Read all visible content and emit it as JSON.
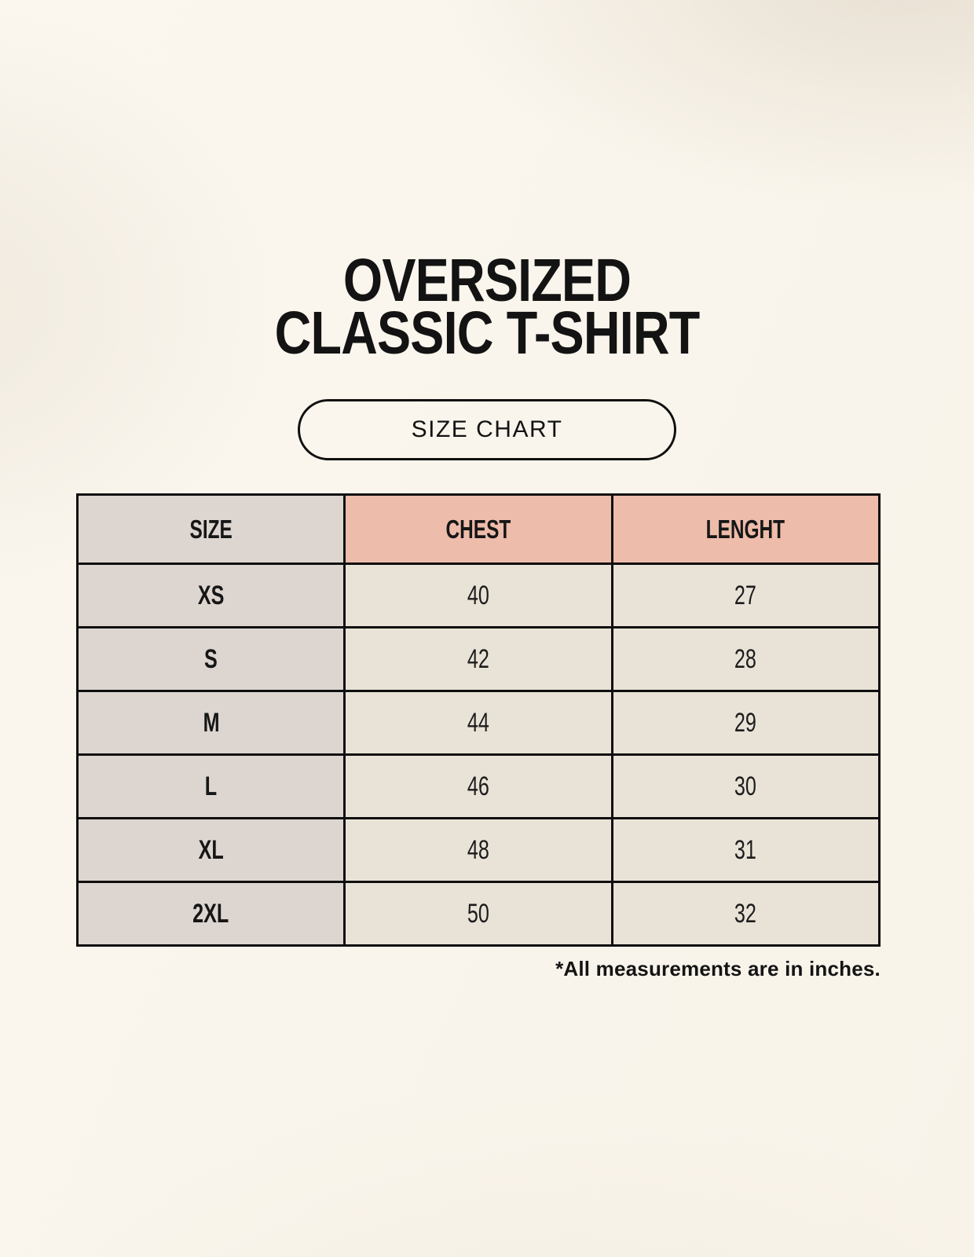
{
  "title": {
    "line1": "OVERSIZED",
    "line2": "CLASSIC T-SHIRT"
  },
  "size_chart_button": {
    "label": "SIZE CHART"
  },
  "table": {
    "headers": [
      "SIZE",
      "CHEST",
      "LENGHT"
    ],
    "rows": [
      [
        "XS",
        "40",
        "27"
      ],
      [
        "S",
        "42",
        "28"
      ],
      [
        "M",
        "44",
        "29"
      ],
      [
        "L",
        "46",
        "30"
      ],
      [
        "XL",
        "48",
        "31"
      ],
      [
        "2XL",
        "50",
        "32"
      ]
    ]
  },
  "footnote": "*All measurements are in inches.",
  "colors": {
    "background": "#faf6ee",
    "size_column_bg": "#ddd6d0",
    "measure_header_bg": "#eebcaa",
    "data_cell_bg": "#e9e2d7",
    "border": "#0f0f0f",
    "text": "#161616"
  },
  "chart_data": {
    "type": "table",
    "title": "OVERSIZED CLASSIC T-SHIRT",
    "subtitle": "SIZE CHART",
    "columns": [
      "SIZE",
      "CHEST",
      "LENGHT"
    ],
    "rows": [
      {
        "size": "XS",
        "chest": 40,
        "length": 27
      },
      {
        "size": "S",
        "chest": 42,
        "length": 28
      },
      {
        "size": "M",
        "chest": 44,
        "length": 29
      },
      {
        "size": "L",
        "chest": 46,
        "length": 30
      },
      {
        "size": "XL",
        "chest": 48,
        "length": 31
      },
      {
        "size": "2XL",
        "chest": 50,
        "length": 32
      }
    ],
    "units": "inches",
    "note": "*All measurements are in inches."
  }
}
